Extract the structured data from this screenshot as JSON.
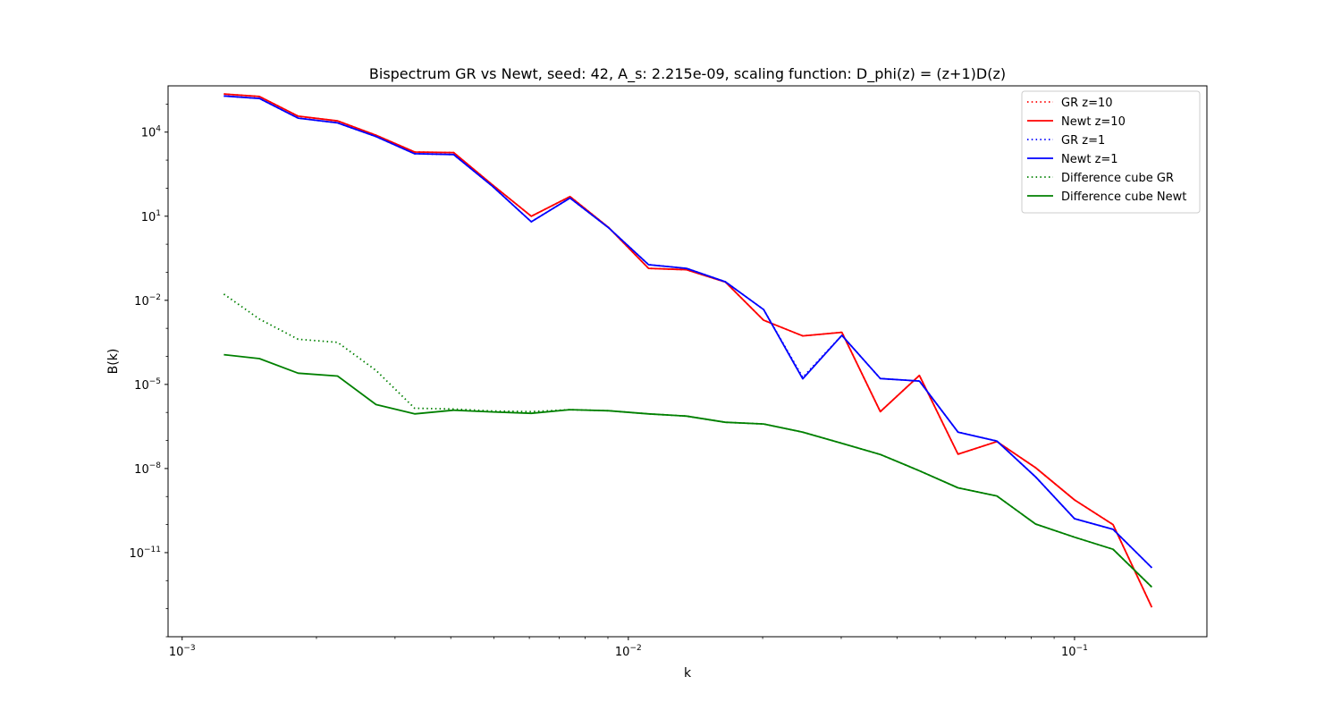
{
  "chart_data": {
    "type": "line",
    "title": "Bispectrum GR vs Newt, seed: 42, A_s: 2.215e-09, scaling function: D_phi(z) = (z+1)D(z)",
    "xlabel": "k",
    "ylabel": "B(k)",
    "xscale": "log",
    "yscale": "log",
    "xlim": [
      0.00093,
      0.198
    ],
    "ylim_exponent": [
      -14.0,
      5.65
    ],
    "x_major_ticks": [
      {
        "value": 0.001,
        "base": "10",
        "exp": "−3"
      },
      {
        "value": 0.01,
        "base": "10",
        "exp": "−2"
      },
      {
        "value": 0.1,
        "base": "10",
        "exp": "−1"
      }
    ],
    "y_major_ticks": [
      {
        "exponent": 4,
        "base": "10",
        "exp": "4"
      },
      {
        "exponent": 1,
        "base": "10",
        "exp": "1"
      },
      {
        "exponent": -2,
        "base": "10",
        "exp": "−2"
      },
      {
        "exponent": -5,
        "base": "10",
        "exp": "−5"
      },
      {
        "exponent": -8,
        "base": "10",
        "exp": "−8"
      },
      {
        "exponent": -11,
        "base": "10",
        "exp": "−11"
      }
    ],
    "legend_position": "top-right",
    "x": [
      0.00124,
      0.00149,
      0.00182,
      0.00223,
      0.00272,
      0.00332,
      0.00406,
      0.00496,
      0.00606,
      0.0074,
      0.00904,
      0.0111,
      0.0135,
      0.0165,
      0.0201,
      0.0246,
      0.0301,
      0.0367,
      0.0449,
      0.0548,
      0.067,
      0.0818,
      0.1,
      0.122,
      0.149
    ],
    "series": [
      {
        "name": "GR z=10",
        "color": "#ff0000",
        "style": "dotted",
        "log10_values": [
          5.36,
          5.27,
          4.57,
          4.4,
          3.89,
          3.29,
          3.27,
          2.12,
          1.0,
          1.7,
          0.59,
          -0.86,
          -0.91,
          -1.35,
          -2.71,
          -3.27,
          -3.14,
          -5.97,
          -4.68,
          -7.49,
          -7.04,
          -7.97,
          -9.12,
          -10.0,
          -12.95
        ]
      },
      {
        "name": "Newt z=10",
        "color": "#ff0000",
        "style": "solid",
        "log10_values": [
          5.36,
          5.27,
          4.57,
          4.4,
          3.89,
          3.29,
          3.27,
          2.12,
          1.0,
          1.7,
          0.59,
          -0.86,
          -0.91,
          -1.35,
          -2.71,
          -3.27,
          -3.14,
          -5.97,
          -4.68,
          -7.49,
          -7.04,
          -7.97,
          -9.12,
          -10.0,
          -12.95
        ]
      },
      {
        "name": "GR z=1",
        "color": "#0000ff",
        "style": "dotted",
        "log10_values": [
          5.29,
          5.2,
          4.5,
          4.33,
          3.84,
          3.23,
          3.2,
          2.07,
          0.8,
          1.65,
          0.58,
          -0.73,
          -0.86,
          -1.34,
          -2.33,
          -4.75,
          -3.25,
          -4.79,
          -4.88,
          -6.7,
          -7.02,
          -8.3,
          -9.79,
          -10.17,
          -11.54
        ]
      },
      {
        "name": "Newt z=1",
        "color": "#0000ff",
        "style": "solid",
        "log10_values": [
          5.29,
          5.2,
          4.5,
          4.33,
          3.84,
          3.23,
          3.2,
          2.07,
          0.8,
          1.65,
          0.58,
          -0.73,
          -0.86,
          -1.34,
          -2.33,
          -4.8,
          -3.25,
          -4.79,
          -4.88,
          -6.7,
          -7.02,
          -8.3,
          -9.79,
          -10.17,
          -11.54
        ]
      },
      {
        "name": "Difference cube GR",
        "color": "#008000",
        "style": "dotted",
        "log10_values": [
          -1.78,
          -2.67,
          -3.39,
          -3.5,
          -4.5,
          -5.85,
          -5.88,
          -5.95,
          -5.97,
          -5.9,
          -5.94,
          -6.05,
          -6.13,
          -6.35,
          -6.41,
          -6.7,
          -7.1,
          -7.5,
          -8.08,
          -8.69,
          -8.98,
          -9.98,
          -10.45,
          -10.88,
          -12.23
        ]
      },
      {
        "name": "Difference cube Newt",
        "color": "#008000",
        "style": "solid",
        "log10_values": [
          -3.94,
          -4.08,
          -4.6,
          -4.7,
          -5.72,
          -6.05,
          -5.92,
          -5.98,
          -6.03,
          -5.9,
          -5.94,
          -6.05,
          -6.13,
          -6.35,
          -6.41,
          -6.7,
          -7.1,
          -7.5,
          -8.08,
          -8.69,
          -8.98,
          -9.98,
          -10.45,
          -10.88,
          -12.23
        ]
      }
    ]
  }
}
